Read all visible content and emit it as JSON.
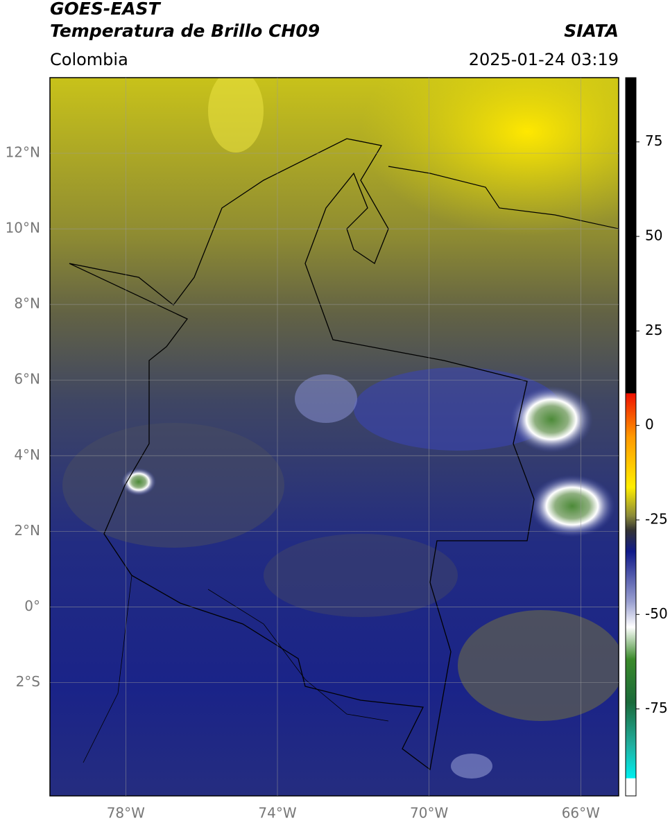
{
  "header": {
    "title": "GOES-EAST",
    "subtitle": "Temperatura de Brillo CH09",
    "source": "SIATA",
    "region": "Colombia",
    "datetime": "2025-01-24 03:19"
  },
  "map": {
    "xlim": [
      -80,
      -65
    ],
    "ylim": [
      -5,
      14
    ],
    "xticks": [
      {
        "value": -78,
        "label": "78°W"
      },
      {
        "value": -74,
        "label": "74°W"
      },
      {
        "value": -70,
        "label": "70°W"
      },
      {
        "value": -66,
        "label": "66°W"
      }
    ],
    "yticks": [
      {
        "value": 12,
        "label": "12°N"
      },
      {
        "value": 10,
        "label": "10°N"
      },
      {
        "value": 8,
        "label": "8°N"
      },
      {
        "value": 6,
        "label": "6°N"
      },
      {
        "value": 4,
        "label": "4°N"
      },
      {
        "value": 2,
        "label": "2°N"
      },
      {
        "value": 0,
        "label": "0°"
      },
      {
        "value": -2,
        "label": "2°S"
      }
    ],
    "grid": true
  },
  "colorbar": {
    "lim": [
      -98,
      92
    ],
    "ticks": [
      75,
      50,
      25,
      0,
      -25,
      -50,
      -75
    ]
  }
}
